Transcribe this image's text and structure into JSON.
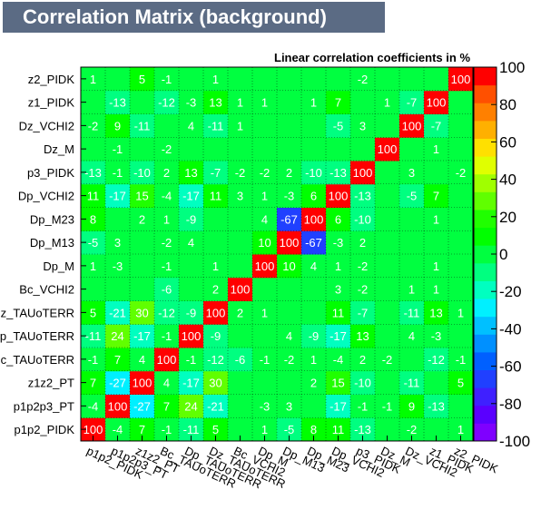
{
  "title": "Correlation Matrix (background)",
  "chart_data": {
    "type": "heatmap",
    "subtitle": "Linear correlation coefficients in %",
    "labels": [
      "p1p2_PIDK",
      "p1p2p3_PT",
      "z1z2_PT",
      "Bc_TAUoTERR",
      "Dp_TAUoTERR",
      "Dz_TAUoTERR",
      "Bc_VCHI2",
      "Dp_M",
      "Dp_M13",
      "Dp_M23",
      "Dp_VCHI2",
      "p3_PIDK",
      "Dz_M",
      "Dz_VCHI2",
      "z1_PIDK",
      "z2_PIDK"
    ],
    "row_labels_shown": [
      "p1p2_PIDK",
      "p1p2p3_PT",
      "z1z2_PT",
      "c_TAUoTERR",
      "p_TAUoTERR",
      "z_TAUoTERR",
      "Bc_VCHI2",
      "Dp_M",
      "Dp_M13",
      "Dp_M23",
      "Dp_VCHI2",
      "p3_PIDK",
      "Dz_M",
      "Dz_VCHI2",
      "z1_PIDK",
      "z2_PIDK"
    ],
    "values": [
      [
        100,
        -4,
        7,
        -1,
        -11,
        5,
        0,
        1,
        -5,
        8,
        11,
        -13,
        0,
        -2,
        0,
        1
      ],
      [
        -4,
        100,
        -27,
        7,
        24,
        -21,
        0,
        -3,
        3,
        0,
        -17,
        -1,
        -1,
        9,
        -13,
        0
      ],
      [
        7,
        -27,
        100,
        4,
        -17,
        30,
        0,
        0,
        0,
        2,
        15,
        -10,
        0,
        -11,
        0,
        5
      ],
      [
        -1,
        7,
        4,
        100,
        -1,
        -12,
        -6,
        -1,
        -2,
        1,
        -4,
        2,
        -2,
        0,
        -12,
        -1
      ],
      [
        -11,
        24,
        -17,
        -1,
        100,
        -9,
        0,
        0,
        4,
        -9,
        -17,
        13,
        0,
        4,
        -3,
        0
      ],
      [
        5,
        -21,
        30,
        -12,
        -9,
        100,
        2,
        1,
        0,
        0,
        11,
        -7,
        0,
        -11,
        13,
        1
      ],
      [
        0,
        0,
        0,
        -6,
        0,
        2,
        100,
        0,
        0,
        0,
        3,
        -2,
        0,
        1,
        1,
        0
      ],
      [
        1,
        -3,
        0,
        -1,
        0,
        1,
        0,
        100,
        10,
        4,
        1,
        -2,
        0,
        0,
        1,
        0
      ],
      [
        -5,
        3,
        0,
        -2,
        4,
        0,
        0,
        10,
        100,
        -67,
        -3,
        2,
        0,
        0,
        0,
        0
      ],
      [
        8,
        0,
        2,
        1,
        -9,
        0,
        0,
        4,
        -67,
        100,
        6,
        -10,
        0,
        0,
        1,
        0
      ],
      [
        11,
        -17,
        15,
        -4,
        -17,
        11,
        3,
        1,
        -3,
        6,
        100,
        -13,
        0,
        -5,
        7,
        0
      ],
      [
        -13,
        -1,
        -10,
        2,
        13,
        -7,
        -2,
        -2,
        2,
        -10,
        -13,
        100,
        0,
        3,
        0,
        -2
      ],
      [
        0,
        -1,
        0,
        -2,
        0,
        0,
        0,
        0,
        0,
        0,
        0,
        0,
        100,
        0,
        1,
        0
      ],
      [
        -2,
        9,
        -11,
        0,
        4,
        -11,
        1,
        0,
        0,
        0,
        -5,
        3,
        0,
        100,
        -7,
        0
      ],
      [
        0,
        -13,
        0,
        -12,
        -3,
        13,
        1,
        1,
        0,
        1,
        7,
        0,
        1,
        -7,
        100,
        0
      ],
      [
        1,
        0,
        5,
        -1,
        0,
        1,
        0,
        0,
        0,
        0,
        0,
        -2,
        0,
        0,
        0,
        100
      ]
    ],
    "zlim": [
      -100,
      100
    ],
    "colorbar_ticks": [
      100,
      80,
      60,
      40,
      20,
      0,
      -20,
      -40,
      -60,
      -80,
      -100
    ],
    "colors": {
      "palette": [
        "#7f00ff",
        "#5a00ff",
        "#3f20ff",
        "#2040ff",
        "#0060ff",
        "#0090ff",
        "#00c0ff",
        "#00f0ff",
        "#00ffc0",
        "#00ff80",
        "#00ff40",
        "#00ff00",
        "#20ff00",
        "#60ff00",
        "#a0ff00",
        "#e0ff00",
        "#ffe000",
        "#ffb000",
        "#ff8000",
        "#ff5000",
        "#ff0000"
      ],
      "title_bg": "#5b6b84"
    }
  }
}
